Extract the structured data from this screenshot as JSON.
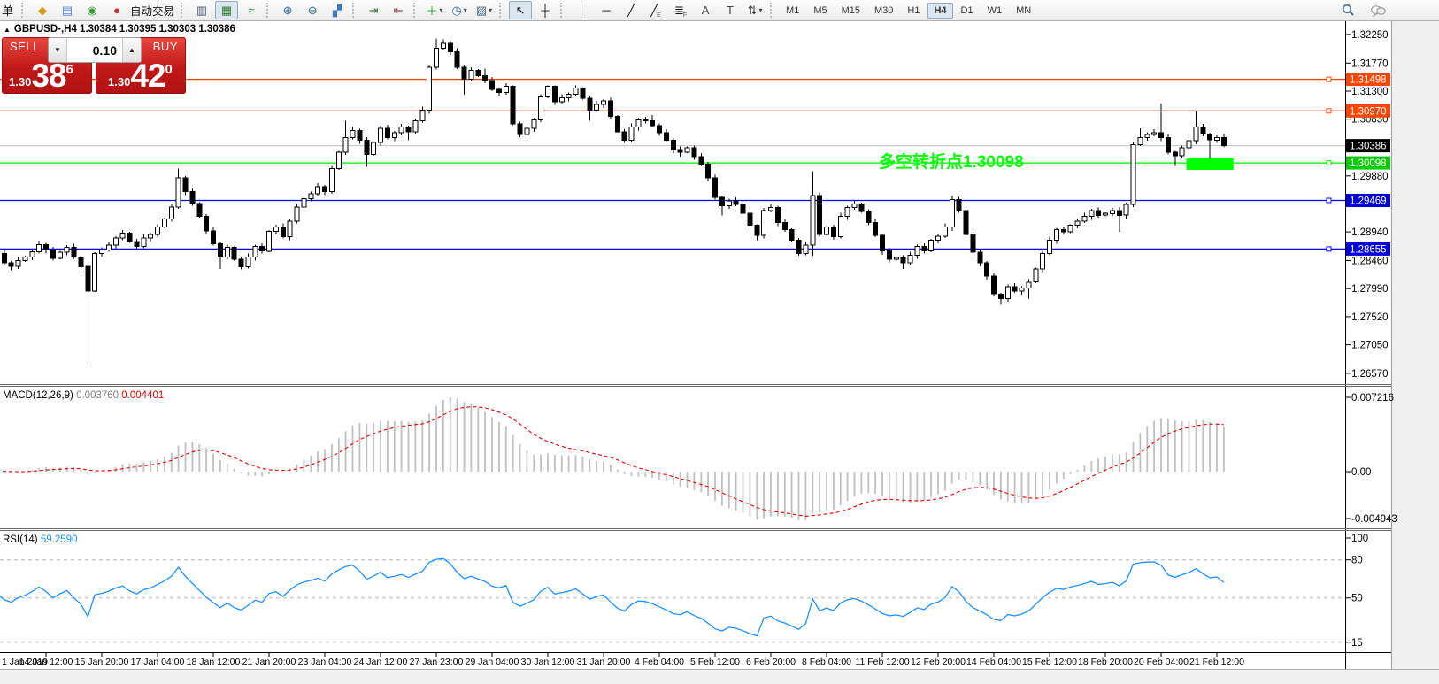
{
  "toolbar": {
    "left_label": "单",
    "groups": [
      {
        "items": [
          {
            "name": "gold-ingot-icon",
            "glyph": "◆",
            "color": "#d4a017"
          },
          {
            "name": "publish-chart-icon",
            "glyph": "▤",
            "color": "#4a7fd4"
          },
          {
            "name": "signal-icon",
            "glyph": "◉",
            "color": "#3a9a3a"
          },
          {
            "name": "autotrade-icon",
            "glyph": "●",
            "color": "#c03030",
            "label": "自动交易"
          }
        ]
      },
      {
        "items": [
          {
            "name": "bar-chart-icon",
            "glyph": "▥",
            "color": "#456"
          },
          {
            "name": "candlestick-chart-icon",
            "glyph": "▦",
            "color": "#267326",
            "pressed": true
          },
          {
            "name": "line-chart-icon",
            "glyph": "≈",
            "color": "#2e7d32"
          }
        ]
      },
      {
        "items": [
          {
            "name": "zoom-in-icon",
            "glyph": "⊕",
            "color": "#2f6fae"
          },
          {
            "name": "zoom-out-icon",
            "glyph": "⊖",
            "color": "#2f6fae"
          },
          {
            "name": "tile-windows-icon",
            "glyph": "▞",
            "color": "#3b78c4"
          }
        ]
      },
      {
        "items": [
          {
            "name": "auto-scroll-icon",
            "glyph": "⇥",
            "color": "#2e7d32"
          },
          {
            "name": "chart-shift-icon",
            "glyph": "⇤",
            "color": "#8d3b3b"
          }
        ]
      },
      {
        "items": [
          {
            "name": "indicators-icon",
            "glyph": "＋",
            "color": "#1fa01f",
            "caret": true
          },
          {
            "name": "periods-icon",
            "glyph": "◷",
            "color": "#2f6fae",
            "caret": true
          },
          {
            "name": "templates-icon",
            "glyph": "▨",
            "color": "#4a6b8a",
            "caret": true
          }
        ]
      },
      {
        "items": [
          {
            "name": "cursor-icon",
            "glyph": "↖",
            "color": "#111",
            "pressed": true
          },
          {
            "name": "crosshair-icon",
            "glyph": "┼",
            "color": "#111"
          }
        ]
      },
      {
        "items": [
          {
            "name": "vertical-line-icon",
            "glyph": "│",
            "color": "#111"
          },
          {
            "name": "horizontal-line-icon",
            "glyph": "─",
            "color": "#111"
          },
          {
            "name": "trendline-icon",
            "glyph": "╱",
            "color": "#111"
          },
          {
            "name": "equidistant-channel-icon",
            "glyph": "╱",
            "sub": "E",
            "color": "#111"
          },
          {
            "name": "fibonacci-icon",
            "glyph": "≣",
            "sub": "F",
            "color": "#111"
          },
          {
            "name": "text-icon",
            "glyph": "A",
            "color": "#444"
          },
          {
            "name": "text-label-icon",
            "glyph": "T",
            "color": "#444"
          },
          {
            "name": "arrows-shapes-icon",
            "glyph": "⇅",
            "color": "#333",
            "caret": true
          }
        ]
      }
    ],
    "timeframes": [
      "M1",
      "M5",
      "M15",
      "M30",
      "H1",
      "H4",
      "D1",
      "W1",
      "MN"
    ],
    "active_timeframe": "H4"
  },
  "trade_panel": {
    "collapse_arrow": "▲",
    "symbol_line": "GBPUSD-,H4  1.30384 1.30395 1.30303 1.30386",
    "sell_label": "SELL",
    "buy_label": "BUY",
    "volume": "0.10",
    "spin_down": "▼",
    "spin_up": "▲",
    "sell_price_small": "1.30",
    "sell_price_big": "38",
    "sell_price_sup": "6",
    "buy_price_small": "1.30",
    "buy_price_big": "42",
    "buy_price_sup": "0"
  },
  "chart_data": [
    {
      "type": "candlestick",
      "symbol": "GBPUSD-",
      "timeframe": "H4",
      "bull_color": "#ffffff",
      "bear_color": "#000000",
      "y_axis_ticks": [
        "1.32250",
        "1.31770",
        "1.31300",
        "1.30830",
        "1.29880",
        "1.28940",
        "1.28460",
        "1.27990",
        "1.27520",
        "1.27050",
        "1.26570"
      ],
      "x_axis_labels": [
        "1 Jan 2019",
        "14 Jan 12:00",
        "15 Jan 20:00",
        "17 Jan 04:00",
        "18 Jan 12:00",
        "21 Jan 20:00",
        "23 Jan 04:00",
        "24 Jan 12:00",
        "27 Jan 23:00",
        "29 Jan 04:00",
        "30 Jan 12:00",
        "31 Jan 20:00",
        "4 Feb 04:00",
        "5 Feb 12:00",
        "6 Feb 20:00",
        "8 Feb 04:00",
        "11 Feb 12:00",
        "12 Feb 20:00",
        "14 Feb 04:00",
        "15 Feb 12:00",
        "18 Feb 20:00",
        "20 Feb 04:00",
        "21 Feb 12:00"
      ],
      "levels": [
        {
          "price": 1.31498,
          "label": "1.31498",
          "color": "#ff4500",
          "tag_bg": "#ff4500"
        },
        {
          "price": 1.3097,
          "label": "1.30970",
          "color": "#ff4500",
          "tag_bg": "#ff4500"
        },
        {
          "price": 1.30386,
          "label": "1.30386",
          "color": "#c0c0c0",
          "tag_bg": "#000000",
          "current": true
        },
        {
          "price": 1.30098,
          "label": "1.30098",
          "color": "#00ee00",
          "tag_bg": "#00cc00"
        },
        {
          "price": 1.29469,
          "label": "1.29469",
          "color": "#0000ff",
          "tag_bg": "#0000d8"
        },
        {
          "price": 1.28655,
          "label": "1.28655",
          "color": "#0000ff",
          "tag_bg": "#0000d8"
        }
      ],
      "annotation": {
        "text": "多空转折点1.30098",
        "color": "#00ff00"
      },
      "highlight_box": {
        "from_bar": 172,
        "to_bar": 178,
        "price_high": 1.30173,
        "price_low": 1.2998,
        "color": "#00ff00"
      },
      "days": [
        {
          "date": "11 Jan",
          "o": 1.2838,
          "h": 1.2868,
          "l": 1.2824,
          "c": 1.2846,
          "closes": [
            1.2846,
            1.2858,
            1.2842,
            1.2836,
            1.2846
          ]
        },
        {
          "date": "14 Jan",
          "o": 1.2846,
          "h": 1.2882,
          "l": 1.2836,
          "c": 1.286,
          "closes": [
            1.2852,
            1.2861,
            1.2873,
            1.2864,
            1.285,
            1.286
          ]
        },
        {
          "date": "15 Jan",
          "o": 1.286,
          "h": 1.2888,
          "l": 1.267,
          "c": 1.2864,
          "closes": [
            1.2868,
            1.2852,
            1.2836,
            1.2795,
            1.2858,
            1.2864
          ],
          "low_bar": 3
        },
        {
          "date": "16 Jan",
          "o": 1.2864,
          "h": 1.29,
          "l": 1.2852,
          "c": 1.2884,
          "closes": [
            1.2872,
            1.2884,
            1.2892,
            1.2878,
            1.287,
            1.2884
          ]
        },
        {
          "date": "17 Jan",
          "o": 1.2884,
          "h": 1.3,
          "l": 1.2862,
          "c": 1.2962,
          "closes": [
            1.289,
            1.2902,
            1.2916,
            1.2936,
            1.2985,
            1.2962
          ],
          "high_bar": 4
        },
        {
          "date": "18 Jan",
          "o": 1.2962,
          "h": 1.2968,
          "l": 1.2832,
          "c": 1.2868,
          "closes": [
            1.2942,
            1.292,
            1.2896,
            1.2874,
            1.2852,
            1.2868
          ],
          "low_bar": 4
        },
        {
          "date": "21 Jan",
          "o": 1.2868,
          "h": 1.29,
          "l": 1.2831,
          "c": 1.2895,
          "closes": [
            1.2848,
            1.2836,
            1.2852,
            1.287,
            1.2862,
            1.2895
          ],
          "low_bar": 1
        },
        {
          "date": "22 Jan",
          "o": 1.2895,
          "h": 1.2962,
          "l": 1.2875,
          "c": 1.2958,
          "closes": [
            1.2902,
            1.2886,
            1.2912,
            1.2936,
            1.295,
            1.2958
          ]
        },
        {
          "date": "23 Jan",
          "o": 1.2958,
          "h": 1.308,
          "l": 1.2948,
          "c": 1.3064,
          "closes": [
            1.297,
            1.2962,
            1.3,
            1.3028,
            1.3052,
            1.3064
          ],
          "high_bar": 4
        },
        {
          "date": "24 Jan",
          "o": 1.3064,
          "h": 1.309,
          "l": 1.3003,
          "c": 1.306,
          "closes": [
            1.3048,
            1.3024,
            1.3044,
            1.3068,
            1.3052,
            1.306
          ],
          "low_bar": 1
        },
        {
          "date": "25 Jan",
          "o": 1.306,
          "h": 1.3218,
          "l": 1.3048,
          "c": 1.3202,
          "closes": [
            1.307,
            1.3062,
            1.308,
            1.3098,
            1.317,
            1.3202
          ],
          "high_bar": 5,
          "low_bar": 1
        },
        {
          "date": "28 Jan",
          "o": 1.3202,
          "h": 1.3217,
          "l": 1.3124,
          "c": 1.3156,
          "closes": [
            1.321,
            1.3196,
            1.317,
            1.315,
            1.3165,
            1.3156
          ],
          "high_bar": 0,
          "low_bar": 3
        },
        {
          "date": "29 Jan",
          "o": 1.3156,
          "h": 1.3168,
          "l": 1.3053,
          "c": 1.3057,
          "closes": [
            1.3148,
            1.3133,
            1.3128,
            1.3138,
            1.3075,
            1.3057
          ],
          "high_bar": 0,
          "low_bar": 5
        },
        {
          "date": "30 Jan",
          "o": 1.3057,
          "h": 1.314,
          "l": 1.3047,
          "c": 1.3119,
          "closes": [
            1.3068,
            1.3082,
            1.312,
            1.3138,
            1.3112,
            1.3119
          ],
          "high_bar": 3,
          "low_bar": 0
        },
        {
          "date": "31 Jan",
          "o": 1.3119,
          "h": 1.314,
          "l": 1.308,
          "c": 1.3114,
          "closes": [
            1.3125,
            1.3135,
            1.3118,
            1.3098,
            1.3108,
            1.3114
          ],
          "high_bar": 1,
          "low_bar": 3
        },
        {
          "date": "1 Feb",
          "o": 1.3114,
          "h": 1.3119,
          "l": 1.3043,
          "c": 1.308,
          "closes": [
            1.3088,
            1.3062,
            1.3048,
            1.307,
            1.3082,
            1.308
          ],
          "low_bar": 2
        },
        {
          "date": "4 Feb",
          "o": 1.308,
          "h": 1.309,
          "l": 1.302,
          "c": 1.3035,
          "closes": [
            1.3072,
            1.306,
            1.3048,
            1.3032,
            1.3028,
            1.3035
          ],
          "high_bar": 0,
          "low_bar": 4
        },
        {
          "date": "5 Feb",
          "o": 1.3035,
          "h": 1.3048,
          "l": 1.2922,
          "c": 1.2946,
          "closes": [
            1.302,
            1.3008,
            1.2985,
            1.2952,
            1.2938,
            1.2946
          ],
          "low_bar": 4
        },
        {
          "date": "6 Feb",
          "o": 1.2946,
          "h": 1.2958,
          "l": 1.288,
          "c": 1.2935,
          "closes": [
            1.294,
            1.2925,
            1.2905,
            1.2888,
            1.293,
            1.2935
          ],
          "low_bar": 3
        },
        {
          "date": "7 Feb",
          "o": 1.2935,
          "h": 1.2996,
          "l": 1.2854,
          "c": 1.2955,
          "closes": [
            1.291,
            1.2898,
            1.288,
            1.2858,
            1.2872,
            1.2955
          ],
          "high_bar": 5,
          "low_bar": 5
        },
        {
          "date": "8 Feb",
          "o": 1.2955,
          "h": 1.296,
          "l": 1.2881,
          "c": 1.2941,
          "closes": [
            1.289,
            1.2902,
            1.2886,
            1.292,
            1.2935,
            1.2941
          ],
          "high_bar": 0,
          "low_bar": 2
        },
        {
          "date": "11 Feb",
          "o": 1.2941,
          "h": 1.2945,
          "l": 1.2843,
          "c": 1.2851,
          "closes": [
            1.2928,
            1.291,
            1.2888,
            1.2862,
            1.2848,
            1.2851
          ],
          "low_bar": 4
        },
        {
          "date": "12 Feb",
          "o": 1.2851,
          "h": 1.2898,
          "l": 1.2832,
          "c": 1.2887,
          "closes": [
            1.2842,
            1.2855,
            1.287,
            1.2862,
            1.288,
            1.2887
          ],
          "low_bar": 0
        },
        {
          "date": "13 Feb",
          "o": 1.2887,
          "h": 1.2955,
          "l": 1.2836,
          "c": 1.2842,
          "closes": [
            1.2902,
            1.2948,
            1.293,
            1.289,
            1.286,
            1.2842
          ],
          "high_bar": 1,
          "low_bar": 5
        },
        {
          "date": "14 Feb",
          "o": 1.2842,
          "h": 1.2846,
          "l": 1.2772,
          "c": 1.28,
          "closes": [
            1.282,
            1.279,
            1.2782,
            1.2802,
            1.2795,
            1.28
          ],
          "low_bar": 2
        },
        {
          "date": "15 Feb",
          "o": 1.28,
          "h": 1.2905,
          "l": 1.2782,
          "c": 1.2894,
          "closes": [
            1.281,
            1.2832,
            1.2858,
            1.288,
            1.2898,
            1.2894
          ],
          "low_bar": 0
        },
        {
          "date": "18 Feb",
          "o": 1.2894,
          "h": 1.2938,
          "l": 1.2888,
          "c": 1.2925,
          "closes": [
            1.2905,
            1.2912,
            1.292,
            1.293,
            1.2922,
            1.2925
          ]
        },
        {
          "date": "19 Feb",
          "o": 1.2925,
          "h": 1.3068,
          "l": 1.2894,
          "c": 1.3057,
          "closes": [
            1.293,
            1.2922,
            1.294,
            1.304,
            1.3052,
            1.3057
          ],
          "high_bar": 4,
          "low_bar": 1
        },
        {
          "date": "20 Feb",
          "o": 1.3057,
          "h": 1.3109,
          "l": 1.3005,
          "c": 1.3047,
          "closes": [
            1.306,
            1.3052,
            1.3028,
            1.3022,
            1.3035,
            1.3047
          ],
          "high_bar": 1,
          "low_bar": 3
        },
        {
          "date": "21 Feb",
          "o": 1.3047,
          "h": 1.3097,
          "l": 1.3015,
          "c": 1.30386,
          "closes": [
            1.307,
            1.3058,
            1.3048,
            1.3052,
            1.30386
          ],
          "high_bar": 0,
          "low_bar": 2
        }
      ]
    },
    {
      "type": "macd_histogram",
      "label": "MACD(12,26,9)",
      "params": [
        12,
        26,
        9
      ],
      "value_main": "0.003760",
      "value_signal": "0.004401",
      "histogram_color": "#c0c0c0",
      "signal_color": "#e00000",
      "y_axis_ticks": [
        "0.007216",
        "0.00",
        "-0.004943"
      ]
    },
    {
      "type": "line",
      "label": "RSI(14)",
      "period": 14,
      "value": "59.2590",
      "line_color": "#1e90ff",
      "levels": [
        80,
        50,
        15
      ],
      "y_axis_ticks": [
        "100",
        "80",
        "50",
        "15"
      ]
    }
  ]
}
